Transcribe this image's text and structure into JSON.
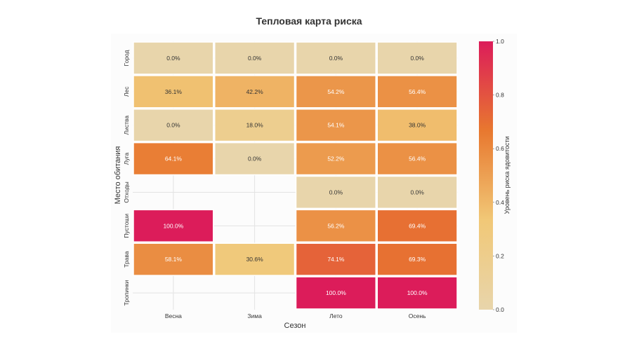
{
  "chart_data": {
    "type": "heatmap",
    "title": "Тепловая карта риска",
    "xlabel": "Сезон",
    "ylabel": "Место обитания",
    "x_categories": [
      "Весна",
      "Зима",
      "Лето",
      "Осень"
    ],
    "y_categories": [
      "Город",
      "Лес",
      "Листва",
      "Луга",
      "Отходы",
      "Пустоши",
      "Трава",
      "Тропинки"
    ],
    "values": [
      [
        0.0,
        0.0,
        0.0,
        0.0
      ],
      [
        0.361,
        0.422,
        0.542,
        0.564
      ],
      [
        0.0,
        0.18,
        0.541,
        0.38
      ],
      [
        0.641,
        0.0,
        0.522,
        0.564
      ],
      [
        null,
        null,
        0.0,
        0.0
      ],
      [
        1.0,
        null,
        0.562,
        0.694
      ],
      [
        0.581,
        0.306,
        0.741,
        0.693
      ],
      [
        null,
        null,
        1.0,
        1.0
      ]
    ],
    "labels": [
      [
        "0.0%",
        "0.0%",
        "0.0%",
        "0.0%"
      ],
      [
        "36.1%",
        "42.2%",
        "54.2%",
        "56.4%"
      ],
      [
        "0.0%",
        "18.0%",
        "54.1%",
        "38.0%"
      ],
      [
        "64.1%",
        "0.0%",
        "52.2%",
        "56.4%"
      ],
      [
        null,
        null,
        "0.0%",
        "0.0%"
      ],
      [
        "100.0%",
        null,
        "56.2%",
        "69.4%"
      ],
      [
        "58.1%",
        "30.6%",
        "74.1%",
        "69.3%"
      ],
      [
        null,
        null,
        "100.0%",
        "100.0%"
      ]
    ],
    "colorbar": {
      "label": "Уровень риска ядовитости",
      "range": [
        0.0,
        1.0
      ],
      "ticks": [
        "0.0",
        "0.2",
        "0.4",
        "0.6",
        "0.8",
        "1.0"
      ],
      "colors": [
        "#e8d5ab",
        "#f1c877",
        "#e8782f",
        "#dc1c5a"
      ]
    },
    "grid": true
  }
}
